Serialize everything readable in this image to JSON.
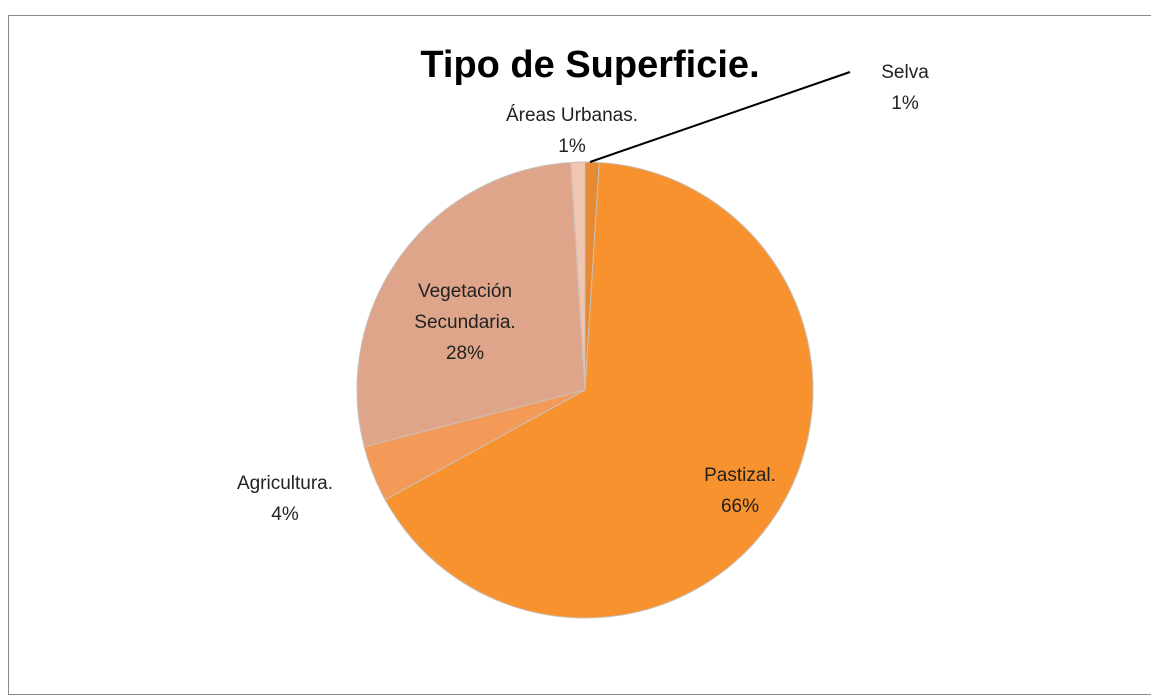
{
  "chart_data": {
    "type": "pie",
    "title": "Tipo de Superficie.",
    "categories": [
      "Selva",
      "Pastizal.",
      "Agricultura.",
      "Vegetación Secundaria.",
      "Áreas Urbanas."
    ],
    "values": [
      1,
      66,
      4,
      28,
      1
    ],
    "value_labels": [
      "1%",
      "66%",
      "4%",
      "28%",
      "1%"
    ],
    "colors": [
      "#e58a33",
      "#f7922f",
      "#f39a58",
      "#dfa58b",
      "#f3c4af"
    ]
  }
}
